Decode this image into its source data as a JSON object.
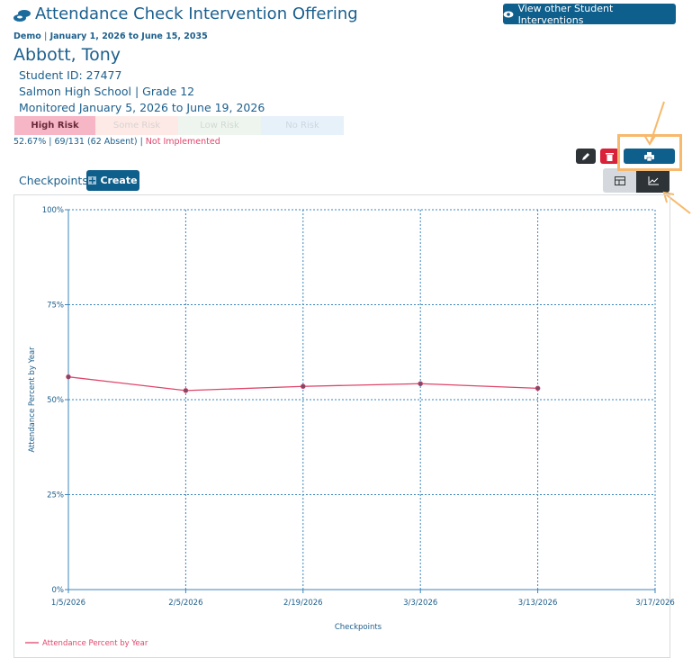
{
  "header": {
    "title": "Attendance Check Intervention Offering",
    "button": "View other Student Interventions",
    "program": "Demo",
    "separator": "|",
    "date_range": "January 1, 2026 to June 15, 2035"
  },
  "student": {
    "name": "Abbott, Tony",
    "id": "Student ID: 27477",
    "school": "Salmon High School | Grade 12",
    "monitored": "Monitored January 5, 2026 to June 19, 2026"
  },
  "risk_levels": [
    "High Risk",
    "Some Risk",
    "Low Risk",
    "No Risk"
  ],
  "stats": {
    "percent": "52.67%",
    "attendance": "69/131 (62 Absent)",
    "status": "Not Implemented"
  },
  "checkpoints": {
    "label": "Checkpoints",
    "create": "Create"
  },
  "chart_data": {
    "type": "line",
    "x_label": "Checkpoints",
    "y_label": "Attendance Percent by Year",
    "categories": [
      "1/5/2026",
      "2/5/2026",
      "2/19/2026",
      "3/3/2026",
      "3/13/2026",
      "3/17/2026"
    ],
    "series": [
      {
        "name": "Attendance Percent by Year",
        "color": "#e0456a",
        "values": [
          56,
          52.4,
          53.5,
          54.2,
          53,
          null
        ]
      }
    ],
    "ylim": [
      0,
      100
    ],
    "yticks": [
      {
        "value": 0,
        "label": "0%"
      },
      {
        "value": 25,
        "label": "25%"
      },
      {
        "value": 50,
        "label": "50%"
      },
      {
        "value": 75,
        "label": "75%"
      },
      {
        "value": 100,
        "label": "100%"
      }
    ],
    "grid": true
  }
}
